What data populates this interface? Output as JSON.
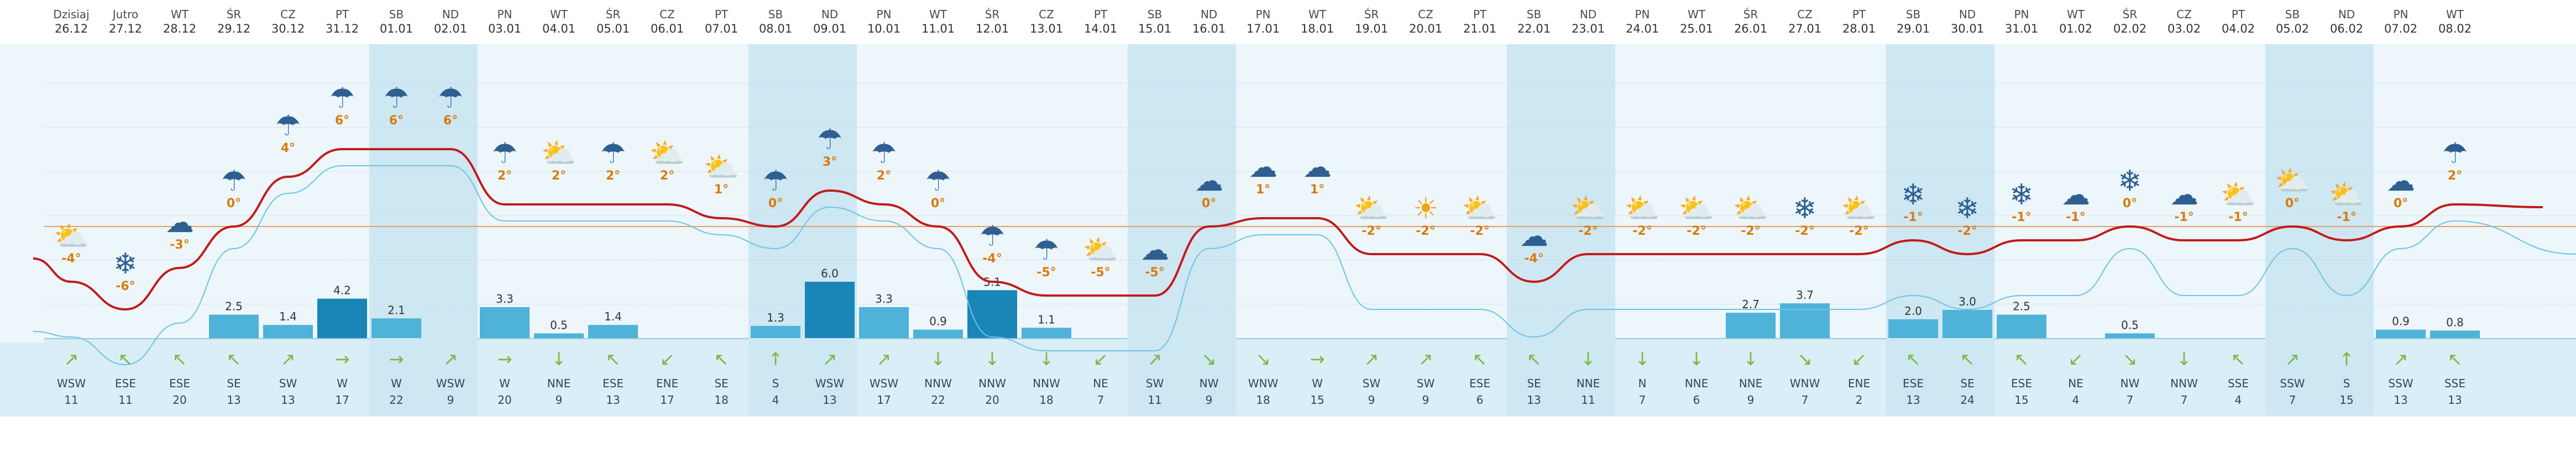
{
  "days": [
    {
      "name": "Dzisiaj",
      "date": "26.12",
      "icon": "sun-cloud-icon",
      "temp": "-4°",
      "tval": -4,
      "precip": null,
      "wind_dir": "WSW",
      "wind_speed": "11",
      "arrow": "↗",
      "weekend": false
    },
    {
      "name": "Jutro",
      "date": "27.12",
      "icon": "cloud-snow-icon",
      "temp": "-6°",
      "tval": -6,
      "precip": null,
      "wind_dir": "ESE",
      "wind_speed": "11",
      "arrow": "↖",
      "weekend": false
    },
    {
      "name": "WT",
      "date": "28.12",
      "icon": "cloud-icon",
      "temp": "-3°",
      "tval": -3,
      "precip": null,
      "wind_dir": "ESE",
      "wind_speed": "20",
      "arrow": "↖",
      "weekend": false
    },
    {
      "name": "ŚR",
      "date": "29.12",
      "icon": "cloud-rain-icon",
      "temp": "0°",
      "tval": 0,
      "precip": 2.5,
      "precip_label": "2.5",
      "wind_dir": "SE",
      "wind_speed": "13",
      "arrow": "↖",
      "weekend": false
    },
    {
      "name": "CZ",
      "date": "30.12",
      "icon": "cloud-rain-icon",
      "temp": "4°",
      "tval": 4,
      "precip": 1.4,
      "precip_label": "1.4",
      "wind_dir": "SW",
      "wind_speed": "13",
      "arrow": "↗",
      "weekend": false
    },
    {
      "name": "PT",
      "date": "31.12",
      "icon": "cloud-rain-icon",
      "temp": "6°",
      "tval": 6,
      "precip": 4.2,
      "precip_label": "4.2",
      "wind_dir": "W",
      "wind_speed": "17",
      "arrow": "→",
      "weekend": false
    },
    {
      "name": "SB",
      "date": "01.01",
      "icon": "cloud-rain-icon",
      "temp": "6°",
      "tval": 6,
      "precip": 2.1,
      "precip_label": "2.1",
      "wind_dir": "W",
      "wind_speed": "22",
      "arrow": "→",
      "weekend": true
    },
    {
      "name": "ND",
      "date": "02.01",
      "icon": "cloud-rain-icon",
      "temp": "6°",
      "tval": 6,
      "precip": null,
      "wind_dir": "WSW",
      "wind_speed": "9",
      "arrow": "↗",
      "weekend": true
    },
    {
      "name": "PN",
      "date": "03.01",
      "icon": "cloud-rain-icon",
      "temp": "2°",
      "tval": 2,
      "precip": 3.3,
      "precip_label": "3.3",
      "wind_dir": "W",
      "wind_speed": "20",
      "arrow": "→",
      "weekend": false
    },
    {
      "name": "WT",
      "date": "04.01",
      "icon": "sun-cloud-icon",
      "temp": "2°",
      "tval": 2,
      "precip": 0.5,
      "precip_label": "0.5",
      "wind_dir": "NNE",
      "wind_speed": "9",
      "arrow": "↓",
      "weekend": false
    },
    {
      "name": "ŚR",
      "date": "05.01",
      "icon": "cloud-rain-icon",
      "temp": "2°",
      "tval": 2,
      "precip": 1.4,
      "precip_label": "1.4",
      "wind_dir": "ESE",
      "wind_speed": "13",
      "arrow": "↖",
      "weekend": false
    },
    {
      "name": "CZ",
      "date": "06.01",
      "icon": "sun-cloud-icon",
      "temp": "2°",
      "tval": 2,
      "precip": null,
      "wind_dir": "ENE",
      "wind_speed": "17",
      "arrow": "↙",
      "weekend": false
    },
    {
      "name": "PT",
      "date": "07.01",
      "icon": "sun-cloud-icon",
      "temp": "1°",
      "tval": 1,
      "precip": null,
      "wind_dir": "SE",
      "wind_speed": "18",
      "arrow": "↖",
      "weekend": false
    },
    {
      "name": "SB",
      "date": "08.01",
      "icon": "cloud-rain-icon",
      "temp": "0°",
      "tval": 0,
      "precip": 1.3,
      "precip_label": "1.3",
      "wind_dir": "S",
      "wind_speed": "4",
      "arrow": "↑",
      "weekend": true
    },
    {
      "name": "ND",
      "date": "09.01",
      "icon": "cloud-rain-icon",
      "temp": "3°",
      "tval": 3,
      "precip": 6.0,
      "precip_label": "6.0",
      "wind_dir": "WSW",
      "wind_speed": "13",
      "arrow": "↗",
      "weekend": true
    },
    {
      "name": "PN",
      "date": "10.01",
      "icon": "cloud-rain-icon",
      "temp": "2°",
      "tval": 2,
      "precip": 3.3,
      "precip_label": "3.3",
      "wind_dir": "WSW",
      "wind_speed": "17",
      "arrow": "↗",
      "weekend": false
    },
    {
      "name": "WT",
      "date": "11.01",
      "icon": "cloud-rain-icon",
      "temp": "0°",
      "tval": 0,
      "precip": 0.9,
      "precip_label": "0.9",
      "wind_dir": "NNW",
      "wind_speed": "22",
      "arrow": "↓",
      "weekend": false
    },
    {
      "name": "ŚR",
      "date": "12.01",
      "icon": "cloud-rain-icon",
      "temp": "-4°",
      "tval": -4,
      "precip": 5.1,
      "precip_label": "5.1",
      "wind_dir": "NNW",
      "wind_speed": "20",
      "arrow": "↓",
      "weekend": false
    },
    {
      "name": "CZ",
      "date": "13.01",
      "icon": "cloud-rain-icon",
      "temp": "-5°",
      "tval": -5,
      "precip": 1.1,
      "precip_label": "1.1",
      "wind_dir": "NNW",
      "wind_speed": "18",
      "arrow": "↓",
      "weekend": false
    },
    {
      "name": "PT",
      "date": "14.01",
      "icon": "sun-cloud-icon",
      "temp": "-5°",
      "tval": -5,
      "precip": null,
      "wind_dir": "NE",
      "wind_speed": "7",
      "arrow": "↙",
      "weekend": false
    },
    {
      "name": "SB",
      "date": "15.01",
      "icon": "cloud-icon",
      "temp": "-5°",
      "tval": -5,
      "precip": null,
      "wind_dir": "SW",
      "wind_speed": "11",
      "arrow": "↗",
      "weekend": true
    },
    {
      "name": "ND",
      "date": "16.01",
      "icon": "cloud-icon",
      "temp": "0°",
      "tval": 0,
      "precip": null,
      "wind_dir": "NW",
      "wind_speed": "9",
      "arrow": "↘",
      "weekend": true
    },
    {
      "name": "PN",
      "date": "17.01",
      "icon": "cloud-icon",
      "temp": "1°",
      "tval": 1,
      "precip": null,
      "wind_dir": "WNW",
      "wind_speed": "18",
      "arrow": "↘",
      "weekend": false
    },
    {
      "name": "WT",
      "date": "18.01",
      "icon": "cloud-icon",
      "temp": "1°",
      "tval": 1,
      "precip": null,
      "wind_dir": "W",
      "wind_speed": "15",
      "arrow": "→",
      "weekend": false
    },
    {
      "name": "ŚR",
      "date": "19.01",
      "icon": "sun-cloud-icon",
      "temp": "-2°",
      "tval": -2,
      "precip": null,
      "wind_dir": "SW",
      "wind_speed": "9",
      "arrow": "↗",
      "weekend": false
    },
    {
      "name": "CZ",
      "date": "20.01",
      "icon": "sun-icon",
      "temp": "-2°",
      "tval": -2,
      "precip": null,
      "wind_dir": "SW",
      "wind_speed": "9",
      "arrow": "↗",
      "weekend": false
    },
    {
      "name": "PT",
      "date": "21.01",
      "icon": "sun-cloud-icon",
      "temp": "-2°",
      "tval": -2,
      "precip": null,
      "wind_dir": "ESE",
      "wind_speed": "6",
      "arrow": "↖",
      "weekend": false
    },
    {
      "name": "SB",
      "date": "22.01",
      "icon": "cloud-icon",
      "temp": "-4°",
      "tval": -4,
      "precip": null,
      "wind_dir": "SE",
      "wind_speed": "13",
      "arrow": "↖",
      "weekend": true
    },
    {
      "name": "ND",
      "date": "23.01",
      "icon": "sun-cloud-icon",
      "temp": "-2°",
      "tval": -2,
      "precip": null,
      "wind_dir": "NNE",
      "wind_speed": "11",
      "arrow": "↓",
      "weekend": true
    },
    {
      "name": "PN",
      "date": "24.01",
      "icon": "sun-cloud-icon",
      "temp": "-2°",
      "tval": -2,
      "precip": null,
      "wind_dir": "N",
      "wind_speed": "7",
      "arrow": "↓",
      "weekend": false
    },
    {
      "name": "WT",
      "date": "25.01",
      "icon": "sun-cloud-icon",
      "temp": "-2°",
      "tval": -2,
      "precip": null,
      "wind_dir": "NNE",
      "wind_speed": "6",
      "arrow": "↓",
      "weekend": false
    },
    {
      "name": "ŚR",
      "date": "26.01",
      "icon": "sun-cloud-icon",
      "temp": "-2°",
      "tval": -2,
      "precip": 2.7,
      "precip_label": "2.7",
      "wind_dir": "NNE",
      "wind_speed": "9",
      "arrow": "↓",
      "weekend": false
    },
    {
      "name": "CZ",
      "date": "27.01",
      "icon": "cloud-snow-icon",
      "temp": "-2°",
      "tval": -2,
      "precip": 3.7,
      "precip_label": "3.7",
      "wind_dir": "WNW",
      "wind_speed": "7",
      "arrow": "↘",
      "weekend": false
    },
    {
      "name": "PT",
      "date": "28.01",
      "icon": "sun-cloud-icon",
      "temp": "-2°",
      "tval": -2,
      "precip": null,
      "wind_dir": "ENE",
      "wind_speed": "2",
      "arrow": "↙",
      "weekend": false
    },
    {
      "name": "SB",
      "date": "29.01",
      "icon": "cloud-snow-icon",
      "temp": "-1°",
      "tval": -1,
      "precip": 2.0,
      "precip_label": "2.0",
      "wind_dir": "ESE",
      "wind_speed": "13",
      "arrow": "↖",
      "weekend": true
    },
    {
      "name": "ND",
      "date": "30.01",
      "icon": "cloud-snow-icon",
      "temp": "-2°",
      "tval": -2,
      "precip": 3.0,
      "precip_label": "3.0",
      "wind_dir": "SE",
      "wind_speed": "24",
      "arrow": "↖",
      "weekend": true
    },
    {
      "name": "PN",
      "date": "31.01",
      "icon": "cloud-snow-icon",
      "temp": "-1°",
      "tval": -1,
      "precip": 2.5,
      "precip_label": "2.5",
      "wind_dir": "ESE",
      "wind_speed": "15",
      "arrow": "↖",
      "weekend": false
    },
    {
      "name": "WT",
      "date": "01.02",
      "icon": "cloud-icon",
      "temp": "-1°",
      "tval": -1,
      "precip": null,
      "wind_dir": "NE",
      "wind_speed": "4",
      "arrow": "↙",
      "weekend": false
    },
    {
      "name": "ŚR",
      "date": "02.02",
      "icon": "cloud-snow-icon",
      "temp": "0°",
      "tval": 0,
      "precip": 0.5,
      "precip_label": "0.5",
      "wind_dir": "NW",
      "wind_speed": "7",
      "arrow": "↘",
      "weekend": false
    },
    {
      "name": "CZ",
      "date": "03.02",
      "icon": "cloud-icon",
      "temp": "-1°",
      "tval": -1,
      "precip": null,
      "wind_dir": "NNW",
      "wind_speed": "7",
      "arrow": "↓",
      "weekend": false
    },
    {
      "name": "PT",
      "date": "04.02",
      "icon": "sun-cloud-icon",
      "temp": "-1°",
      "tval": -1,
      "precip": null,
      "wind_dir": "SSE",
      "wind_speed": "4",
      "arrow": "↖",
      "weekend": false
    },
    {
      "name": "SB",
      "date": "05.02",
      "icon": "sun-cloud-icon",
      "temp": "0°",
      "tval": 0,
      "precip": null,
      "wind_dir": "SSW",
      "wind_speed": "7",
      "arrow": "↗",
      "weekend": true
    },
    {
      "name": "ND",
      "date": "06.02",
      "icon": "sun-cloud-icon",
      "temp": "-1°",
      "tval": -1,
      "precip": null,
      "wind_dir": "S",
      "wind_speed": "15",
      "arrow": "↑",
      "weekend": true
    },
    {
      "name": "PN",
      "date": "07.02",
      "icon": "cloud-icon",
      "temp": "0°",
      "tval": 0,
      "precip": 0.9,
      "precip_label": "0.9",
      "wind_dir": "SSW",
      "wind_speed": "13",
      "arrow": "↗",
      "weekend": false
    },
    {
      "name": "WT",
      "date": "08.02",
      "icon": "cloud-rain-icon",
      "temp": "2°",
      "tval": 2,
      "precip": 0.8,
      "precip_label": "0.8",
      "wind_dir": "SSE",
      "wind_speed": "13",
      "arrow": "↖",
      "weekend": false
    }
  ],
  "colors": {
    "temp_line": "#c41a1a",
    "zero_line": "#e8a060",
    "thin_line": "#6ec3e6",
    "precip_bar": "#4fb2d8",
    "precip_bar_dark": "#1a86b8",
    "temp_label": "#d97b0c",
    "wind_arrow": "#7ab83e"
  },
  "icons": {
    "sun-icon": "☀",
    "cloud-icon": "☁",
    "sun-cloud-icon": "⛅",
    "cloud-rain-icon": "☂",
    "cloud-snow-icon": "❄"
  }
}
